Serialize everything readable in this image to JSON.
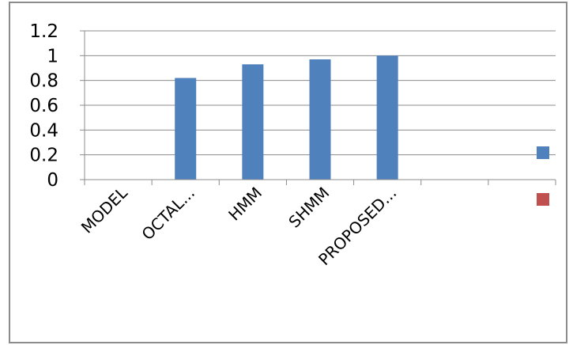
{
  "chart_data": {
    "type": "bar",
    "title": "",
    "xlabel": "",
    "ylabel": "",
    "categories": [
      "MODEL",
      "OCTAL...",
      "HMM",
      "SHMM",
      "PROPOSED...",
      "",
      ""
    ],
    "series": [
      {
        "values": [
          null,
          0.82,
          0.93,
          0.97,
          1.0,
          null,
          null
        ],
        "color": "#4f81bd"
      },
      {
        "values": [
          null,
          null,
          null,
          null,
          null,
          null,
          null
        ],
        "color": "#c0504d"
      }
    ],
    "ylim": [
      0,
      1.2
    ],
    "yticks": [
      "0",
      "0.2",
      "0.4",
      "0.6",
      "0.8",
      "1",
      "1.2"
    ],
    "grid": true,
    "legend": "right"
  }
}
